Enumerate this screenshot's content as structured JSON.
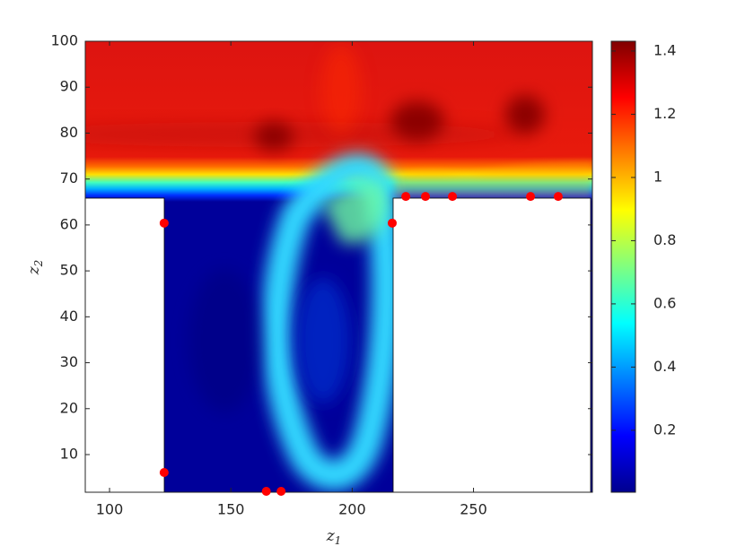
{
  "chart_data": {
    "type": "contour",
    "x_label": "z",
    "x_label_sub": "1",
    "y_label": "z",
    "y_label_sub": "2",
    "xlim": [
      90,
      299
    ],
    "xticks": [
      100,
      150,
      200,
      250
    ],
    "ylim": [
      1.8,
      100
    ],
    "yticks": [
      10,
      20,
      30,
      40,
      50,
      60,
      70,
      80,
      90,
      100
    ],
    "colormap": "jet",
    "clim": [
      0.004,
      1.431
    ],
    "cticks": [
      0.2,
      0.4,
      0.6,
      0.8,
      1,
      1.2,
      1.4
    ],
    "series": [
      {
        "color": "#ff0000",
        "x": [
          122.5,
          122.5,
          164.6,
          170.7,
          216.5,
          222.1,
          230.2,
          241.3,
          273.5,
          284.9
        ],
        "values": [
          60.4,
          6.1,
          2.0,
          2.0,
          60.4,
          66.2,
          66.2,
          66.2,
          66.2,
          66.2
        ]
      }
    ]
  }
}
